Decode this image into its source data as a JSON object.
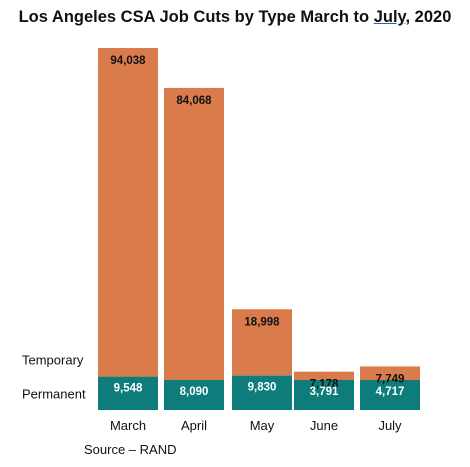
{
  "chart_data": {
    "type": "bar",
    "stacked": true,
    "title_parts": [
      "Los Angeles CSA Job Cuts by Type March to ",
      "July,",
      " 2020"
    ],
    "categories": [
      "March",
      "April",
      "May",
      "June",
      "July"
    ],
    "series": [
      {
        "name": "Permanent",
        "values": [
          9548,
          8090,
          9830,
          3791,
          4717
        ],
        "labels": [
          "9,548",
          "8,090",
          "9,830",
          "3,791",
          "4,717"
        ],
        "color": "#0e7c7b",
        "label_color": "#ffffff"
      },
      {
        "name": "Temporary",
        "values": [
          94038,
          84068,
          18998,
          7178,
          7749
        ],
        "labels": [
          "94,038",
          "84,068",
          "18,998",
          "7,178",
          "7,749"
        ],
        "color": "#d97b4a",
        "label_color": "#111111"
      }
    ],
    "legend_placement": "left-inline",
    "grid": false
  },
  "source": "Source – RAND"
}
